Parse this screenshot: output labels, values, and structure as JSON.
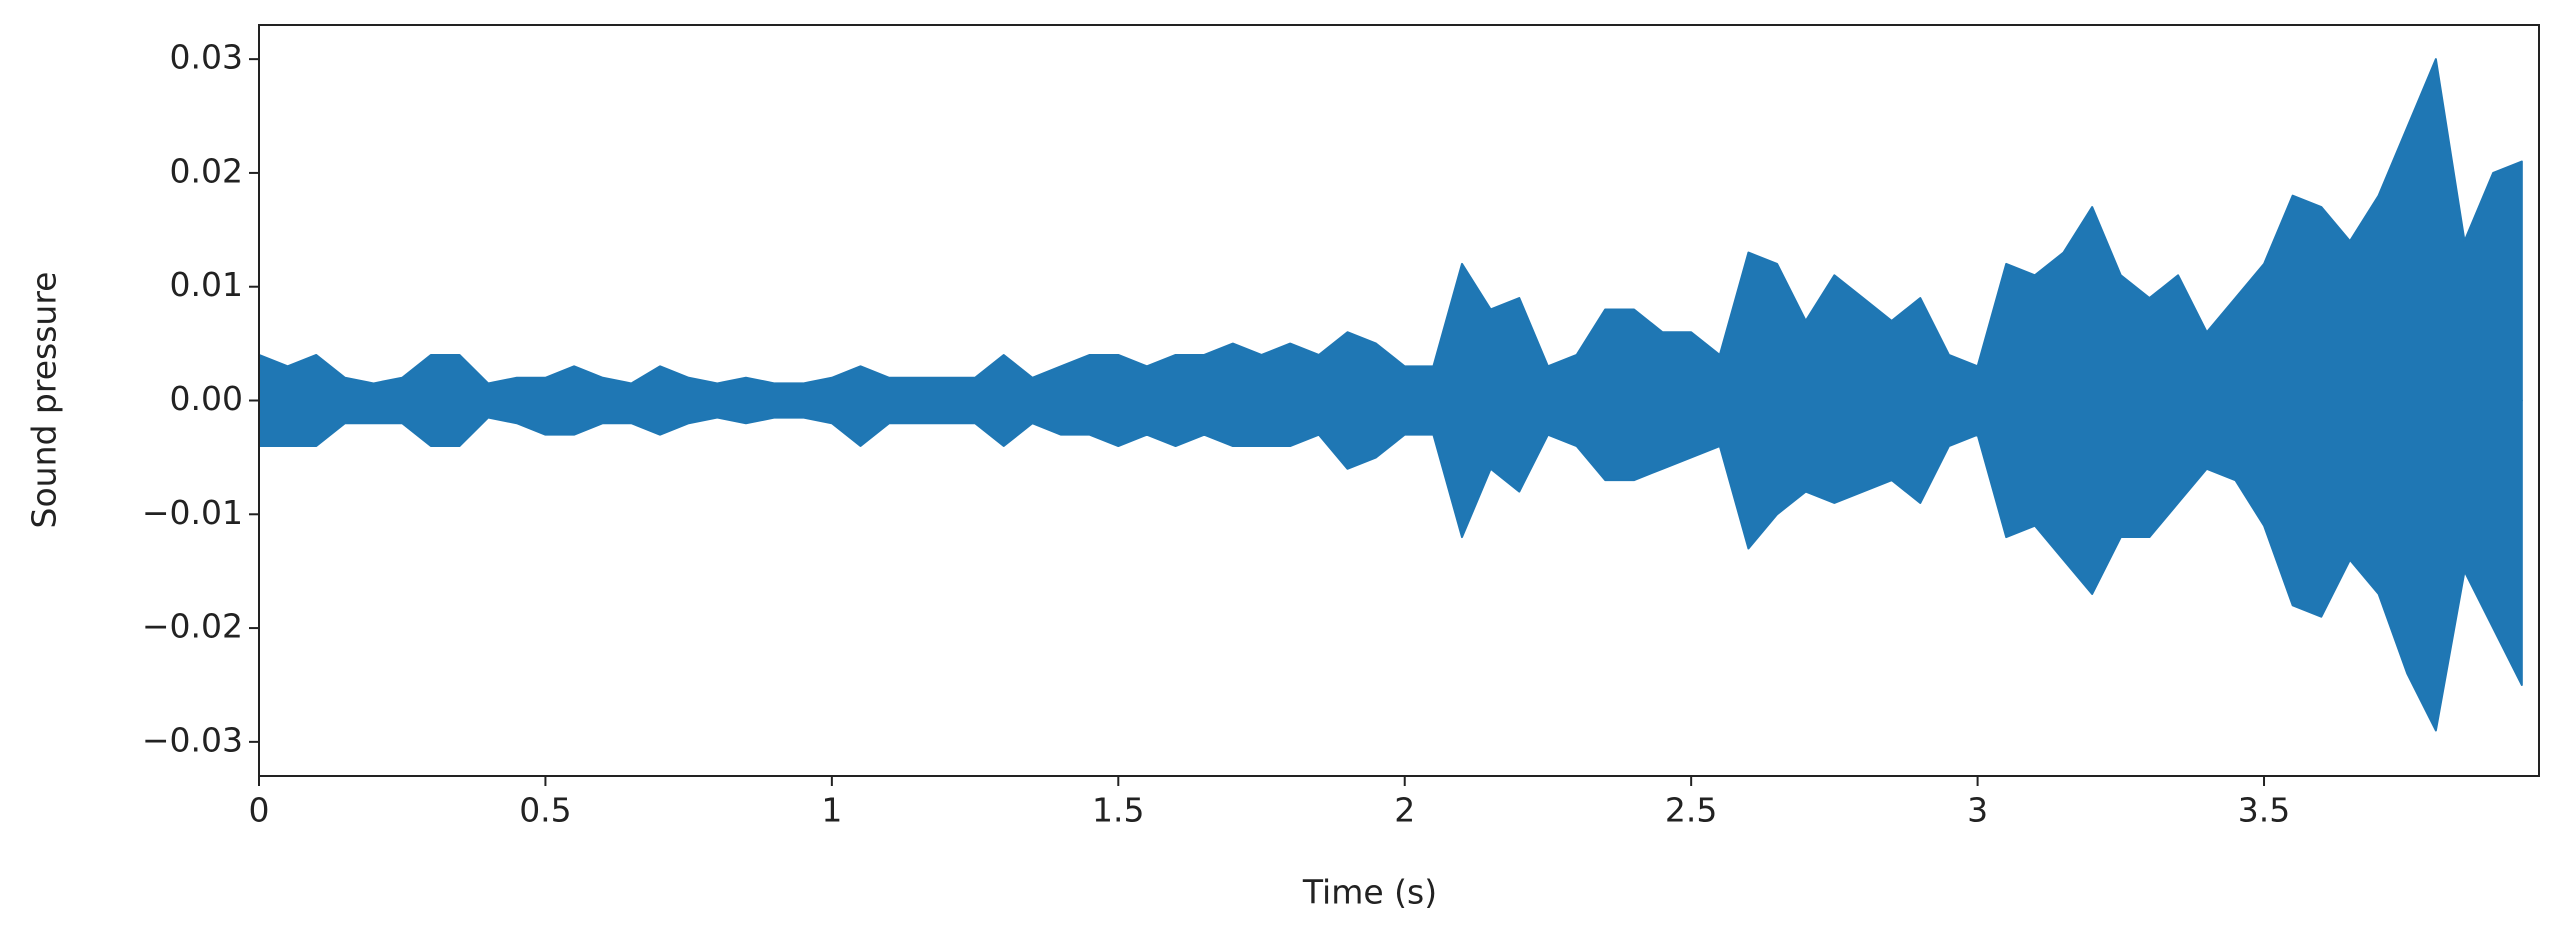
{
  "chart_data": {
    "type": "area",
    "x_label": "Time (s)",
    "y_label": "Sound pressure",
    "x": [
      0,
      0.05,
      0.1,
      0.15,
      0.2,
      0.25,
      0.3,
      0.35,
      0.4,
      0.45,
      0.5,
      0.55,
      0.6,
      0.65,
      0.7,
      0.75,
      0.8,
      0.85,
      0.9,
      0.95,
      1.0,
      1.05,
      1.1,
      1.15,
      1.2,
      1.25,
      1.3,
      1.35,
      1.4,
      1.45,
      1.5,
      1.55,
      1.6,
      1.65,
      1.7,
      1.75,
      1.8,
      1.85,
      1.9,
      1.95,
      2.0,
      2.05,
      2.1,
      2.15,
      2.2,
      2.25,
      2.3,
      2.35,
      2.4,
      2.45,
      2.5,
      2.55,
      2.6,
      2.65,
      2.7,
      2.75,
      2.8,
      2.85,
      2.9,
      2.95,
      3.0,
      3.05,
      3.1,
      3.15,
      3.2,
      3.25,
      3.3,
      3.35,
      3.4,
      3.45,
      3.5,
      3.55,
      3.6,
      3.65,
      3.7,
      3.75,
      3.8,
      3.85,
      3.9,
      3.95
    ],
    "series": [
      {
        "color": "#1f77b4",
        "values": [
          0.004,
          0.003,
          0.004,
          0.002,
          0.0015,
          0.002,
          0.004,
          0.004,
          0.0015,
          0.002,
          0.002,
          0.003,
          0.002,
          0.0015,
          0.003,
          0.002,
          0.0015,
          0.002,
          0.0015,
          0.0015,
          0.002,
          0.003,
          0.002,
          0.002,
          0.002,
          0.002,
          0.004,
          0.002,
          0.003,
          0.004,
          0.004,
          0.003,
          0.004,
          0.004,
          0.005,
          0.004,
          0.005,
          0.004,
          0.006,
          0.005,
          0.003,
          0.003,
          0.012,
          0.008,
          0.009,
          0.003,
          0.004,
          0.008,
          0.008,
          0.006,
          0.006,
          0.004,
          0.013,
          0.012,
          0.007,
          0.011,
          0.009,
          0.007,
          0.009,
          0.004,
          0.003,
          0.012,
          0.011,
          0.013,
          0.017,
          0.011,
          0.009,
          0.011,
          0.006,
          0.009,
          0.012,
          0.018,
          0.017,
          0.014,
          0.018,
          0.024,
          0.03,
          0.014,
          0.02,
          0.021
        ]
      },
      {
        "color": "#1f77b4",
        "values": [
          -0.004,
          -0.004,
          -0.004,
          -0.002,
          -0.002,
          -0.002,
          -0.004,
          -0.004,
          -0.0015,
          -0.002,
          -0.003,
          -0.003,
          -0.002,
          -0.002,
          -0.003,
          -0.002,
          -0.0015,
          -0.002,
          -0.0015,
          -0.0015,
          -0.002,
          -0.004,
          -0.002,
          -0.002,
          -0.002,
          -0.002,
          -0.004,
          -0.002,
          -0.003,
          -0.003,
          -0.004,
          -0.003,
          -0.004,
          -0.003,
          -0.004,
          -0.004,
          -0.004,
          -0.003,
          -0.006,
          -0.005,
          -0.003,
          -0.003,
          -0.012,
          -0.006,
          -0.008,
          -0.003,
          -0.004,
          -0.007,
          -0.007,
          -0.006,
          -0.005,
          -0.004,
          -0.013,
          -0.01,
          -0.008,
          -0.009,
          -0.008,
          -0.007,
          -0.009,
          -0.004,
          -0.003,
          -0.012,
          -0.011,
          -0.014,
          -0.017,
          -0.012,
          -0.012,
          -0.009,
          -0.006,
          -0.007,
          -0.011,
          -0.018,
          -0.019,
          -0.014,
          -0.017,
          -0.024,
          -0.029,
          -0.015,
          -0.02,
          -0.025
        ]
      }
    ],
    "xlim": [
      0,
      3.98
    ],
    "ylim": [
      -0.033,
      0.033
    ],
    "xticks": [
      0,
      0.5,
      1,
      1.5,
      2,
      2.5,
      3,
      3.5
    ],
    "yticks": [
      0.03,
      0.02,
      0.01,
      {
        "value": 0,
        "label": "0.00"
      },
      {
        "value": -0.01,
        "label": "−0.01"
      },
      {
        "value": -0.02,
        "label": "−0.02"
      },
      {
        "value": -0.03,
        "label": "−0.03"
      }
    ]
  }
}
